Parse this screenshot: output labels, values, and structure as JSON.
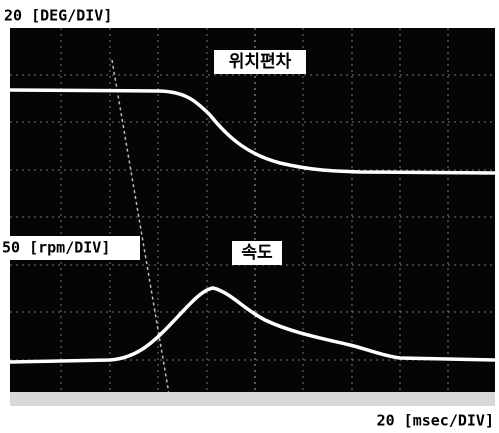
{
  "labels": {
    "top_scale": "20 [DEG/DIV]",
    "top_trace": "위치편차",
    "bottom_scale": "50 [rpm/DIV]",
    "bottom_trace": "속도",
    "time_scale": "20 [msec/DIV]"
  }
}
